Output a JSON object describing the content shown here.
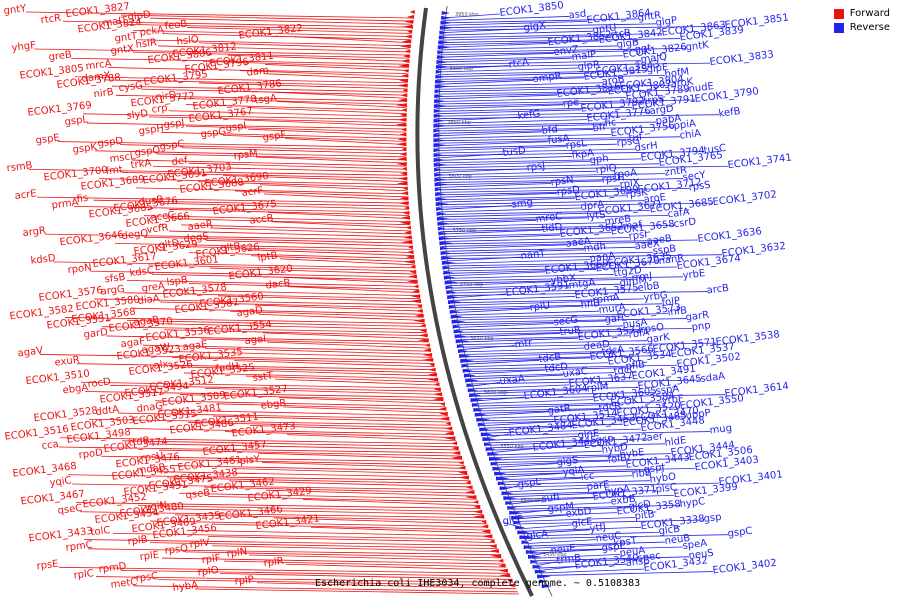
{
  "caption": "Escherichia coli IHE3034, complete genome. ~ 0.5108383",
  "legend": [
    {
      "label": "Forward",
      "color": "#ee1111"
    },
    {
      "label": "Reverse",
      "color": "#2222ee"
    }
  ],
  "colors": {
    "forward": "#ee1111",
    "reverse": "#2222ee",
    "backbone": "#444444"
  },
  "ticks": [
    "3950 kbp",
    "3900 kbp",
    "3850 kbp",
    "3800 kbp",
    "3750 kbp",
    "3700 kbp",
    "3650 kbp",
    "3600 kbp",
    "3550 kbp",
    "3500 kbp",
    "3450 kbp"
  ],
  "forward_labels": [
    "gntY",
    "ECOK1_3827",
    "glpD",
    "rtcR",
    "malT",
    "feoB",
    "ECOK1_3824",
    "pckA",
    "ECOK1_3822",
    "gntT",
    "hslO",
    "hslR",
    "yhgF",
    "gntX",
    "ECOK1_3812",
    "greB",
    "ECOK1_3806",
    "ECOK1_3811",
    "mrcA",
    "ECOK1_3796",
    "dam",
    "ECOK1_3805",
    "damX",
    "ECOK1_3795",
    "ECOK1_3788",
    "cysG",
    "ECOK1_3786",
    "nirB",
    "nirD",
    "tsgA",
    "ECOK1_3772",
    "ECOK1_3778",
    "crp",
    "ECOK1_3769",
    "slyD",
    "ECOK1_3767",
    "gspL",
    "gspJ",
    "gspI",
    "gspH",
    "gspG",
    "gspF",
    "gspE",
    "gspD",
    "gspC",
    "gspK",
    "gspO",
    "rpsM",
    "mscL",
    "def",
    "trkA",
    "rsmB",
    "fmt",
    "ECOK1_3703",
    "ECOK1_3700",
    "ECOK1_3691",
    "ECOK1_3690",
    "ECOK1_3689",
    "ECOK1_3688",
    "acrF",
    "acrE",
    "fis",
    "dusB",
    "prmA",
    "ECOK1_3676",
    "ECOK1_3675",
    "ECOK1_3665",
    "accC",
    "accB",
    "ECOK1_3666",
    "aaeR",
    "vcfR",
    "argR",
    "degQ",
    "degS",
    "ECOK1_3646",
    "gltD",
    "gltB",
    "ECOK1_3629",
    "ECOK1_3626",
    "lptB",
    "kdsD",
    "ECOK1_3617",
    "ECOK1_3601",
    "rpoN",
    "kdsC",
    "ECOK1_3620",
    "sfsB",
    "lspB",
    "dacB",
    "greA",
    "argG",
    "ECOK1_3578",
    "ECOK1_3576",
    "diaA",
    "ECOK1_3560",
    "ECOK1_3580",
    "ECOK1_3567",
    "agaD",
    "ECOK1_3582",
    "ECOK1_3568",
    "agaB",
    "ECOK1_3551",
    "ECOK1_3570",
    "ECOK1_3554",
    "garD",
    "ECOK1_3536",
    "agaI",
    "agaF",
    "agaE",
    "agaW",
    "agaV",
    "ECOK1_3523",
    "ECOK1_3535",
    "exuR",
    "alx",
    "fadH",
    "ECOK1_3526",
    "ECOK1_3525",
    "sstT",
    "ECOK1_3510",
    "rocD",
    "ECOK1_3512",
    "ebgA",
    "ECOK1_3494",
    "ECOK1_3527",
    "ECOK1_3517",
    "ECOK1_3509",
    "ebgR",
    "dnaG",
    "ddtA",
    "ECOK1_3481",
    "ECOK1_3528",
    "ECOK1_3515",
    "ECOK1_3511",
    "ECOK1_3503",
    "ECOK1_3486",
    "ECOK1_3473",
    "ECOK1_3516",
    "ECOK1_3498",
    "ttdB",
    "cca",
    "ECOK1_3474",
    "ECOK1_3457",
    "rpoD",
    "rpsU",
    "plsY",
    "ECOK1_3476",
    "ECOK1_3461",
    "mdaB",
    "ECOK1_3468",
    "ECOK1_3455",
    "ECOK1_3438",
    "yqiC",
    "ECOK1_3475",
    "ECOK1_3462",
    "ECOK1_3451",
    "qseB",
    "ECOK1_3429",
    "ECOK1_3467",
    "ECOK1_3452",
    "ygiN",
    "qseC",
    "ECOK1_3480",
    "ECOK1_3466",
    "ECOK1_3454",
    "ECOK1_3435",
    "ECOK1_3421",
    "ECOK1_3469",
    "tolC",
    "ECOK1_3456",
    "ECOK1_3433",
    "rplB",
    "rplV",
    "rpmC",
    "rpsQ",
    "rplN",
    "rplE",
    "rplF",
    "rplR",
    "rpsE",
    "rpmD",
    "rplO",
    "rplC",
    "rpsC",
    "rplP",
    "metC",
    "hybA"
  ],
  "reverse_labels": [
    "ECOK1_3850",
    "asd",
    "gntR",
    "ECOK1_3864",
    "glgP",
    "ECOK1_3851",
    "glgX",
    "gntU",
    "ECOK1_3863",
    "rtcB",
    "ECOK1_3839",
    "ECOK1_3842",
    "ECOK1_3852",
    "glgB",
    "gntK",
    "ggt",
    "envZ",
    "ECOK1_3826",
    "malP",
    "malQ",
    "ECOK1_3833",
    "rtcA",
    "glpR",
    "glpE",
    "ECOK1_3843",
    "hofM",
    "ECOK1_3815",
    "ompR",
    "aroB",
    "aroK",
    "ECOK1_3804",
    "nudE",
    "ECOK1_3807",
    "ECOK1_3816",
    "ECOK1_3789",
    "ECOK1_3790",
    "trpS",
    "rpe",
    "ECOK1_3791",
    "ECOK1_3792",
    "argD",
    "kefB",
    "kefG",
    "ECOK1_3776",
    "pabA",
    "fic",
    "ppiA",
    "bfr",
    "bfd",
    "ECOK1_3756",
    "chiA",
    "tuf",
    "fusA",
    "rpsG",
    "rpsL",
    "dsrH",
    "tusC",
    "tusD",
    "fkpA",
    "ECOK1_3794",
    "gph",
    "ECOK1_3765",
    "ECOK1_3741",
    "rpsJ",
    "rplQ",
    "zntR",
    "rpoA",
    "secY",
    "rpsH",
    "rpsN",
    "rplX",
    "rpsS",
    "ECOK1_3712",
    "rpsD",
    "rpsK",
    "ECOK1_3699",
    "aroE",
    "ECOK1_3702",
    "smg",
    "dprA",
    "ECOK1_3685",
    "ECOK1_3671",
    "cafA",
    "lytS",
    "mreC",
    "mreB",
    "csrD",
    "maf",
    "tldD",
    "ECOK1_3658",
    "ECOK1_3652",
    "rpsI",
    "ECOK1_3636",
    "aaeB",
    "aaeA",
    "aaeX",
    "mdh",
    "sspB",
    "ECOK1_3632",
    "nanT",
    "nanA",
    "nanR",
    "ECOK1_3635",
    "ECOK1_3674",
    "ECOK1_3670",
    "ECOK1_3669",
    "ttg2D",
    "yrbE",
    "rrmJ",
    "yhbX",
    "glmM",
    "mtgA",
    "elbB",
    "arcB",
    "ECOK1_3591",
    "ECOK1_3575",
    "yrbG",
    "rpmA",
    "folP",
    "hflB",
    "rplU",
    "murA",
    "infB",
    "ECOK1_3573",
    "garR",
    "garL",
    "secG",
    "nusA",
    "pnp",
    "rpsO",
    "truB",
    "rbfA",
    "ECOK1_3572",
    "garK",
    "ECOK1_3538",
    "mtr",
    "deaD",
    "ECOK1_3571",
    "tdcA",
    "ECOK1_3537",
    "ECOK1_3566",
    "tdcB",
    "ECOK1_3534",
    "ECOK1_3502",
    "pflB",
    "tdcD",
    "tdcC",
    "uxaC",
    "ECOK1_3491",
    "sdaA",
    "uxaA",
    "ECOK1_3637",
    "ECOK1_3645",
    "rplM",
    "sspA",
    "ECOK1_3614",
    "ECOK1_3604",
    "ECOK1_3605",
    "yrbF",
    "ECOK1_3584",
    "ECOK1_3550",
    "tdcR",
    "gatR",
    "ECOK1_3520",
    "uppP",
    "ECOK1_3470",
    "ECOK1_3514",
    "ECOK1_3485",
    "ECOK1_3453",
    "ECOK1_3448",
    "mug",
    "ECOK1_3484",
    "glnE",
    "aer",
    "gcp",
    "hldE",
    "ECOK1_3472",
    "ECOK1_3445",
    "hybD",
    "ECOK1_3444",
    "hybE",
    "ECOK1_3506",
    "folB",
    "glgS",
    "ECOK1_3443",
    "ECOK1_3403",
    "gspJ",
    "yqiA",
    "ribB",
    "icc",
    "hybO",
    "ECOK1_3401",
    "gspL",
    "parE",
    "plsC",
    "hypA",
    "ECOK1_3399",
    "ECOK1_3371",
    "sufI",
    "exbB",
    "hypC",
    "glcD",
    "gspM",
    "ECOK1_3358",
    "exbD",
    "pitB",
    "gsp",
    "glcF",
    "glcE",
    "ECOK1_3338",
    "ytfJ",
    "glcB",
    "gspC",
    "glcA",
    "neuC",
    "neuB",
    "kpsT",
    "speA",
    "gspE",
    "neuE",
    "neuA",
    "neuS",
    "spec",
    "trmB",
    "ansB",
    "ECOK1_3540",
    "ECOK1_3432",
    "ECOK1_3402"
  ]
}
